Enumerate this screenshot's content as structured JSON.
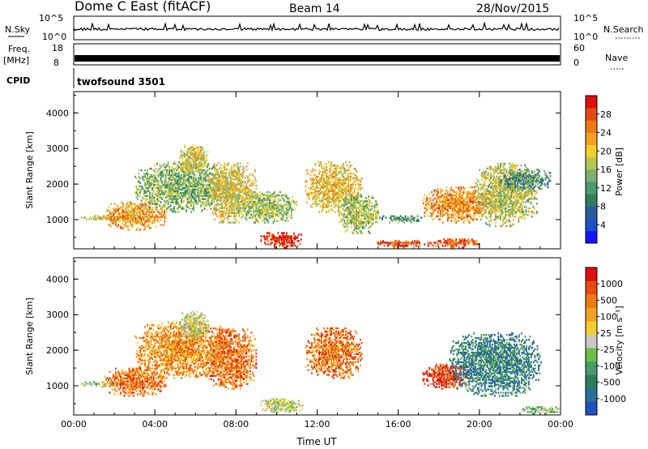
{
  "header": {
    "station": "Dome C East (fitACF)",
    "beam": "Beam 14",
    "date": "28/Nov/2015"
  },
  "summary_panels": {
    "nsky_label": "N.Sky",
    "nsky_ticks": [
      "10^5",
      "10^0"
    ],
    "nsearch_label": "N.Search",
    "nsearch_ticks": [
      "10^5",
      "10^0"
    ],
    "freq_label": "Freq.",
    "freq_unit": "[MHz]",
    "freq_ticks": [
      "18",
      "8"
    ],
    "nave_label": "Nave",
    "nave_ticks": [
      "60",
      "0"
    ],
    "cpid_label": "CPID",
    "cpid_value": "twofsound 3501"
  },
  "chart_data": [
    {
      "type": "heatmap",
      "name": "power",
      "ylabel": "Slant Range [km]",
      "xlabel": "",
      "x_ticks": [
        "00:00",
        "04:00",
        "08:00",
        "12:00",
        "16:00",
        "20:00",
        "00:00"
      ],
      "x_range_hours": [
        0,
        24
      ],
      "y_ticks": [
        1000,
        2000,
        3000,
        4000
      ],
      "ylim": [
        180,
        4600
      ],
      "colorbar": {
        "label": "Power [dB]",
        "ticks": [
          "4",
          "8",
          "12",
          "16",
          "20",
          "24",
          "28"
        ],
        "colors": [
          "#1414ff",
          "#1e50c8",
          "#2d5a9e",
          "#2e7d5c",
          "#4a9a6a",
          "#7bb06e",
          "#b5c552",
          "#f0cf2a",
          "#f4a020",
          "#f07a10",
          "#e84a10",
          "#e01010"
        ]
      },
      "regions": [
        {
          "t0": 0.3,
          "t1": 3.5,
          "r0": 950,
          "r1": 1100,
          "level": 0.55
        },
        {
          "t0": 1.5,
          "t1": 4.5,
          "r0": 700,
          "r1": 1500,
          "level": 0.72
        },
        {
          "t0": 3.0,
          "t1": 7.5,
          "r0": 1200,
          "r1": 2600,
          "level": 0.45
        },
        {
          "t0": 5.2,
          "t1": 6.6,
          "r0": 2300,
          "r1": 3100,
          "level": 0.6
        },
        {
          "t0": 6.5,
          "t1": 9.0,
          "r0": 900,
          "r1": 2600,
          "level": 0.6
        },
        {
          "t0": 8.0,
          "t1": 11.0,
          "r0": 900,
          "r1": 1800,
          "level": 0.5
        },
        {
          "t0": 9.2,
          "t1": 11.3,
          "r0": 200,
          "r1": 650,
          "level": 0.95
        },
        {
          "t0": 11.4,
          "t1": 14.2,
          "r0": 1200,
          "r1": 2600,
          "level": 0.65
        },
        {
          "t0": 13.0,
          "t1": 15.0,
          "r0": 600,
          "r1": 1700,
          "level": 0.5
        },
        {
          "t0": 14.8,
          "t1": 17.5,
          "r0": 200,
          "r1": 400,
          "level": 0.85
        },
        {
          "t0": 15.0,
          "t1": 17.2,
          "r0": 900,
          "r1": 1100,
          "level": 0.35
        },
        {
          "t0": 17.2,
          "t1": 20.5,
          "r0": 900,
          "r1": 1900,
          "level": 0.75
        },
        {
          "t0": 17.5,
          "t1": 20.0,
          "r0": 200,
          "r1": 450,
          "level": 0.85
        },
        {
          "t0": 19.8,
          "t1": 22.8,
          "r0": 800,
          "r1": 2600,
          "level": 0.55
        },
        {
          "t0": 21.0,
          "t1": 23.5,
          "r0": 1800,
          "r1": 2400,
          "level": 0.35
        }
      ]
    },
    {
      "type": "heatmap",
      "name": "velocity",
      "ylabel": "Slant Range [km]",
      "xlabel": "Time UT",
      "x_ticks": [
        "00:00",
        "04:00",
        "08:00",
        "12:00",
        "16:00",
        "20:00",
        "00:00"
      ],
      "x_range_hours": [
        0,
        24
      ],
      "y_ticks": [
        1000,
        2000,
        3000,
        4000
      ],
      "ylim": [
        180,
        4600
      ],
      "colorbar": {
        "label": "Velocity [m s⁻¹]",
        "ticks": [
          "1000",
          "500",
          "100",
          "25",
          "-25",
          "-100",
          "-500",
          "-1000"
        ],
        "colors": [
          "#2050c0",
          "#2a6e9a",
          "#2e7d5c",
          "#4a9a6a",
          "#6cc04a",
          "#c8c8c0",
          "#f0cf2a",
          "#f4a020",
          "#f07a10",
          "#e84a10",
          "#e01010"
        ]
      },
      "regions": [
        {
          "t0": 0.3,
          "t1": 3.0,
          "r0": 950,
          "r1": 1100,
          "level": 0.5
        },
        {
          "t0": 1.5,
          "t1": 4.5,
          "r0": 700,
          "r1": 1500,
          "level": 0.78
        },
        {
          "t0": 3.0,
          "t1": 7.5,
          "r0": 1200,
          "r1": 2800,
          "level": 0.72
        },
        {
          "t0": 5.2,
          "t1": 6.6,
          "r0": 2300,
          "r1": 3100,
          "level": 0.5
        },
        {
          "t0": 6.5,
          "t1": 9.0,
          "r0": 900,
          "r1": 2600,
          "level": 0.78
        },
        {
          "t0": 9.2,
          "t1": 11.3,
          "r0": 200,
          "r1": 650,
          "level": 0.5
        },
        {
          "t0": 11.4,
          "t1": 14.2,
          "r0": 1200,
          "r1": 2600,
          "level": 0.78
        },
        {
          "t0": 17.2,
          "t1": 19.5,
          "r0": 900,
          "r1": 1600,
          "level": 0.9
        },
        {
          "t0": 18.5,
          "t1": 23.0,
          "r0": 700,
          "r1": 2500,
          "level": 0.22
        },
        {
          "t0": 22.0,
          "t1": 24.0,
          "r0": 200,
          "r1": 400,
          "level": 0.4
        }
      ]
    }
  ]
}
